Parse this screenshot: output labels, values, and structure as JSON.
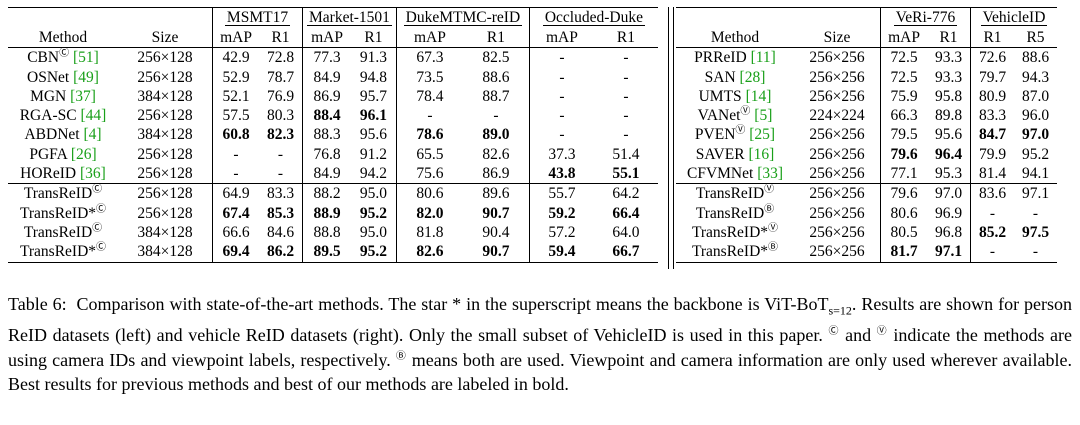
{
  "left_table": {
    "group_headers": [
      "MSMT17",
      "Market-1501",
      "DukeMTMC-reID",
      "Occluded-Duke"
    ],
    "col_headers": [
      "Method",
      "Size",
      "mAP",
      "R1",
      "mAP",
      "R1",
      "mAP",
      "R1",
      "mAP",
      "R1"
    ],
    "rows_prev": [
      {
        "method": "CBN",
        "sup": "Ⓒ",
        "ref": "[51]",
        "size": "256×128",
        "vals": [
          "42.9",
          "72.8",
          "77.3",
          "91.3",
          "67.3",
          "82.5",
          "-",
          "-"
        ],
        "bold": []
      },
      {
        "method": "OSNet",
        "sup": "",
        "ref": "[49]",
        "size": "256×128",
        "vals": [
          "52.9",
          "78.7",
          "84.9",
          "94.8",
          "73.5",
          "88.6",
          "-",
          "-"
        ],
        "bold": []
      },
      {
        "method": "MGN",
        "sup": "",
        "ref": "[37]",
        "size": "384×128",
        "vals": [
          "52.1",
          "76.9",
          "86.9",
          "95.7",
          "78.4",
          "88.7",
          "-",
          "-"
        ],
        "bold": []
      },
      {
        "method": "RGA-SC",
        "sup": "",
        "ref": "[44]",
        "size": "256×128",
        "vals": [
          "57.5",
          "80.3",
          "88.4",
          "96.1",
          "-",
          "-",
          "-",
          "-"
        ],
        "bold": [
          2,
          3
        ]
      },
      {
        "method": "ABDNet",
        "sup": "",
        "ref": "[4]",
        "size": "384×128",
        "vals": [
          "60.8",
          "82.3",
          "88.3",
          "95.6",
          "78.6",
          "89.0",
          "-",
          "-"
        ],
        "bold": [
          0,
          1,
          4,
          5
        ]
      },
      {
        "method": "PGFA",
        "sup": "",
        "ref": "[26]",
        "size": "256×128",
        "vals": [
          "-",
          "-",
          "76.8",
          "91.2",
          "65.5",
          "82.6",
          "37.3",
          "51.4"
        ],
        "bold": []
      },
      {
        "method": "HOReID",
        "sup": "",
        "ref": "[36]",
        "size": "256×128",
        "vals": [
          "-",
          "-",
          "84.9",
          "94.2",
          "75.6",
          "86.9",
          "43.8",
          "55.1"
        ],
        "bold": [
          6,
          7
        ]
      }
    ],
    "rows_ours": [
      {
        "method": "TransReID",
        "sup": "Ⓒ",
        "size": "256×128",
        "vals": [
          "64.9",
          "83.3",
          "88.2",
          "95.0",
          "80.6",
          "89.6",
          "55.7",
          "64.2"
        ],
        "bold": []
      },
      {
        "method": "TransReID*",
        "sup": "Ⓒ",
        "size": "256×128",
        "vals": [
          "67.4",
          "85.3",
          "88.9",
          "95.2",
          "82.0",
          "90.7",
          "59.2",
          "66.4"
        ],
        "bold": [
          0,
          1,
          2,
          3,
          4,
          5,
          6,
          7
        ]
      },
      {
        "method": "TransReID",
        "sup": "Ⓒ",
        "size": "384×128",
        "vals": [
          "66.6",
          "84.6",
          "88.8",
          "95.0",
          "81.8",
          "90.4",
          "57.2",
          "64.0"
        ],
        "bold": []
      },
      {
        "method": "TransReID*",
        "sup": "Ⓒ",
        "size": "384×128",
        "vals": [
          "69.4",
          "86.2",
          "89.5",
          "95.2",
          "82.6",
          "90.7",
          "59.4",
          "66.7"
        ],
        "bold": [
          0,
          1,
          2,
          3,
          4,
          5,
          6,
          7
        ]
      }
    ]
  },
  "right_table": {
    "group_headers": [
      "VeRi-776",
      "VehicleID"
    ],
    "col_headers": [
      "Method",
      "Size",
      "mAP",
      "R1",
      "R1",
      "R5"
    ],
    "rows_prev": [
      {
        "method": "PRReID",
        "sup": "",
        "ref": "[11]",
        "size": "256×256",
        "vals": [
          "72.5",
          "93.3",
          "72.6",
          "88.6"
        ],
        "bold": []
      },
      {
        "method": "SAN",
        "sup": "",
        "ref": "[28]",
        "size": "256×256",
        "vals": [
          "72.5",
          "93.3",
          "79.7",
          "94.3"
        ],
        "bold": []
      },
      {
        "method": "UMTS",
        "sup": "",
        "ref": "[14]",
        "size": "256×256",
        "vals": [
          "75.9",
          "95.8",
          "80.9",
          "87.0"
        ],
        "bold": []
      },
      {
        "method": "VANet",
        "sup": "Ⓥ",
        "ref": "[5]",
        "size": "224×224",
        "vals": [
          "66.3",
          "89.8",
          "83.3",
          "96.0"
        ],
        "bold": []
      },
      {
        "method": "PVEN",
        "sup": "Ⓥ",
        "ref": "[25]",
        "size": "256×256",
        "vals": [
          "79.5",
          "95.6",
          "84.7",
          "97.0"
        ],
        "bold": [
          2,
          3
        ]
      },
      {
        "method": "SAVER",
        "sup": "",
        "ref": "[16]",
        "size": "256×256",
        "vals": [
          "79.6",
          "96.4",
          "79.9",
          "95.2"
        ],
        "bold": [
          0,
          1
        ]
      },
      {
        "method": "CFVMNet",
        "sup": "",
        "ref": "[33]",
        "size": "256×256",
        "vals": [
          "77.1",
          "95.3",
          "81.4",
          "94.1"
        ],
        "bold": []
      }
    ],
    "rows_ours": [
      {
        "method": "TransReID",
        "sup": "Ⓥ",
        "size": "256×256",
        "vals": [
          "79.6",
          "97.0",
          "83.6",
          "97.1"
        ],
        "bold": []
      },
      {
        "method": "TransReID",
        "sup": "Ⓑ",
        "size": "256×256",
        "vals": [
          "80.6",
          "96.9",
          "-",
          "-"
        ],
        "bold": []
      },
      {
        "method": "TransReID*",
        "sup": "Ⓥ",
        "size": "256×256",
        "vals": [
          "80.5",
          "96.8",
          "85.2",
          "97.5"
        ],
        "bold": [
          2,
          3
        ]
      },
      {
        "method": "TransReID*",
        "sup": "Ⓑ",
        "size": "256×256",
        "vals": [
          "81.7",
          "97.1",
          "-",
          "-"
        ],
        "bold": [
          0,
          1
        ]
      }
    ]
  },
  "caption": {
    "label": "Table 6:",
    "s1a": "Comparison with state-of-the-art methods. The star * in the superscript means the backbone is ViT-BoT",
    "s1_sub": "s=12",
    "s1b": ".",
    "s2": "Results are shown for person ReID datasets (left) and vehicle ReID datasets (right). Only the small subset of VehicleID is used in this paper.",
    "sym_c": "Ⓒ",
    "and": "and",
    "sym_v": "Ⓥ",
    "s3": "indicate the methods are using camera IDs and viewpoint labels, respectively.",
    "sym_b": "Ⓑ",
    "s4": "means both are used. Viewpoint and camera information are only used wherever available. Best results for previous methods and best of our methods are labeled in bold."
  }
}
